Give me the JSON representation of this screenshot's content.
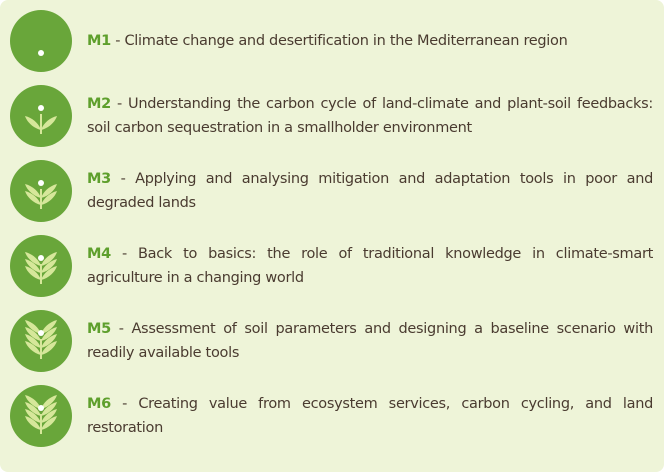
{
  "modules": [
    {
      "code": "M1",
      "text": " - Climate change and desertification in the Mediterranean region"
    },
    {
      "code": "M2",
      "text": " - Understanding the carbon cycle of land-climate and plant-soil feedbacks: soil carbon sequestration in a smallholder environment"
    },
    {
      "code": "M3",
      "text": " - Applying and analysing mitigation and adaptation tools in poor and degraded lands"
    },
    {
      "code": "M4",
      "text": " - Back to basics: the role of traditional knowledge in climate-smart agriculture in a changing world"
    },
    {
      "code": "M5",
      "text": " - Assessment of soil parameters and designing a baseline scenario with readily available tools"
    },
    {
      "code": "M6",
      "text": " - Creating value from ecosystem services, carbon cycling, and land restoration"
    }
  ]
}
